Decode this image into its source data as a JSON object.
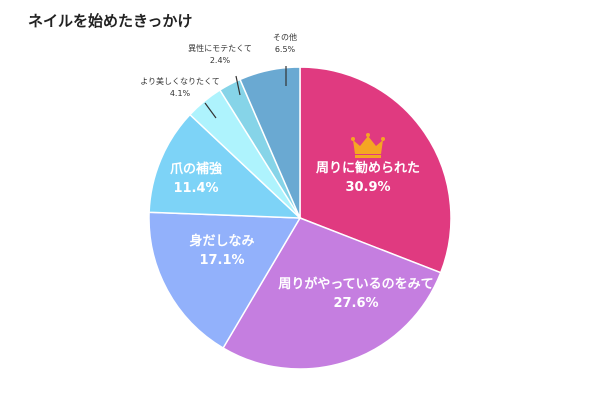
{
  "colors": {
    "crown": "#f5a623",
    "outside_label": "#333333",
    "leader_line": "#333333"
  },
  "chart_data": {
    "type": "pie",
    "title": "ネイルを始めたきっかけ",
    "start_angle_deg": 0,
    "direction": "clockwise",
    "legend": "none",
    "slices": [
      {
        "label": "周りに勧められた",
        "value": 30.9,
        "value_label": "30.9%",
        "color": "#e03a80",
        "label_placement": "inside",
        "icon": "crown-icon"
      },
      {
        "label": "周りがやっているのをみて",
        "value": 27.6,
        "value_label": "27.6%",
        "color": "#c57ee0",
        "label_placement": "inside"
      },
      {
        "label": "身だしなみ",
        "value": 17.1,
        "value_label": "17.1%",
        "color": "#92b1fb",
        "label_placement": "inside"
      },
      {
        "label": "爪の補強",
        "value": 11.4,
        "value_label": "11.4%",
        "color": "#7dd3f7",
        "label_placement": "inside"
      },
      {
        "label": "より美しくなりたくて",
        "value": 4.1,
        "value_label": "4.1%",
        "color": "#aef3fd",
        "label_placement": "outside"
      },
      {
        "label": "異性にモテたくて",
        "value": 2.4,
        "value_label": "2.4%",
        "color": "#86d4e8",
        "label_placement": "outside"
      },
      {
        "label": "その他",
        "value": 6.5,
        "value_label": "6.5%",
        "color": "#6aa9d2",
        "label_placement": "outside"
      }
    ]
  }
}
